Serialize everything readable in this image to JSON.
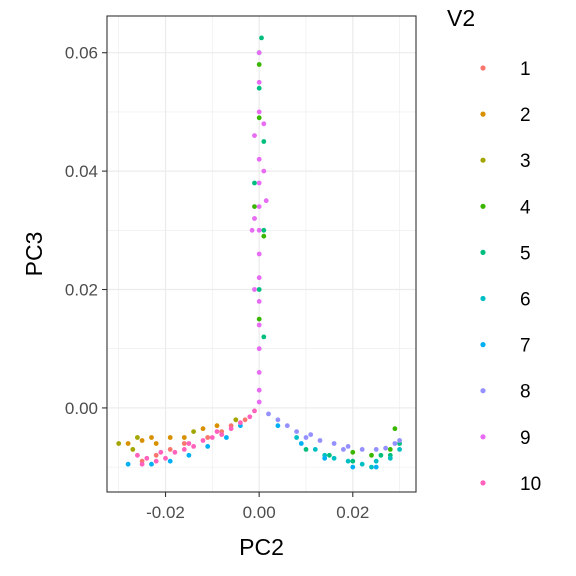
{
  "chart_data": {
    "type": "scatter",
    "xlabel": "PC2",
    "ylabel": "PC3",
    "xlim": [
      -0.0325,
      0.0335
    ],
    "ylim": [
      -0.0142,
      0.0662
    ],
    "x_ticks": [
      -0.02,
      0.0,
      0.02
    ],
    "x_tick_labels": [
      "-0.02",
      "0.00",
      "0.02"
    ],
    "y_ticks": [
      0.0,
      0.02,
      0.04,
      0.06
    ],
    "y_tick_labels": [
      "0.00",
      "0.02",
      "0.04",
      "0.06"
    ],
    "grid": true,
    "legend": {
      "title": "V2",
      "placement": "right",
      "entries": [
        "1",
        "2",
        "3",
        "4",
        "5",
        "6",
        "7",
        "8",
        "9",
        "10"
      ]
    },
    "colors": [
      "#F8766D",
      "#D89000",
      "#A3A500",
      "#39B600",
      "#00BF7D",
      "#00BFC4",
      "#00B0F6",
      "#9590FF",
      "#E76BF3",
      "#FF62BC"
    ],
    "series": [
      {
        "name": "1",
        "points": [
          [
            -0.022,
            -0.008
          ],
          [
            -0.016,
            -0.006
          ],
          [
            -0.011,
            -0.005
          ],
          [
            -0.006,
            -0.003
          ],
          [
            -0.003,
            -0.002
          ],
          [
            -0.019,
            -0.007
          ],
          [
            -0.008,
            -0.004
          ],
          [
            -0.025,
            -0.009
          ]
        ]
      },
      {
        "name": "2",
        "points": [
          [
            -0.028,
            -0.006
          ],
          [
            -0.025,
            -0.0055
          ],
          [
            -0.022,
            -0.006
          ],
          [
            -0.019,
            -0.005
          ],
          [
            -0.016,
            -0.005
          ],
          [
            -0.012,
            -0.0035
          ],
          [
            -0.009,
            -0.003
          ],
          [
            -0.023,
            -0.005
          ]
        ]
      },
      {
        "name": "3",
        "points": [
          [
            -0.03,
            -0.006
          ],
          [
            -0.027,
            -0.007
          ],
          [
            -0.014,
            -0.004
          ],
          [
            -0.005,
            -0.002
          ],
          [
            -0.026,
            -0.005
          ]
        ]
      },
      {
        "name": "4",
        "points": [
          [
            0.0,
            0.058
          ],
          [
            0.0,
            0.049
          ],
          [
            -0.001,
            0.034
          ],
          [
            0.001,
            0.029
          ],
          [
            0.029,
            -0.0035
          ],
          [
            0.028,
            -0.007
          ],
          [
            0.024,
            -0.008
          ],
          [
            0.02,
            -0.0075
          ],
          [
            0.0,
            0.015
          ]
        ]
      },
      {
        "name": "5",
        "points": [
          [
            0.0005,
            0.0625
          ],
          [
            0.0,
            0.06
          ],
          [
            0.0,
            0.054
          ],
          [
            0.001,
            0.045
          ],
          [
            -0.001,
            0.038
          ],
          [
            0.001,
            0.03
          ],
          [
            0.0,
            0.02
          ],
          [
            0.001,
            0.012
          ],
          [
            0.015,
            -0.008
          ],
          [
            0.02,
            -0.009
          ],
          [
            0.026,
            -0.008
          ],
          [
            0.03,
            -0.006
          ],
          [
            0.01,
            -0.007
          ],
          [
            0.028,
            -0.008
          ]
        ]
      },
      {
        "name": "6",
        "points": [
          [
            0.008,
            -0.005
          ],
          [
            0.012,
            -0.007
          ],
          [
            0.016,
            -0.0085
          ],
          [
            0.019,
            -0.009
          ],
          [
            0.022,
            -0.0095
          ],
          [
            0.025,
            -0.009
          ],
          [
            0.028,
            -0.0085
          ],
          [
            0.03,
            -0.007
          ],
          [
            0.014,
            -0.008
          ],
          [
            0.024,
            -0.01
          ]
        ]
      },
      {
        "name": "7",
        "points": [
          [
            -0.028,
            -0.0095
          ],
          [
            -0.023,
            -0.0095
          ],
          [
            -0.019,
            -0.009
          ],
          [
            -0.015,
            -0.008
          ],
          [
            -0.011,
            -0.0065
          ],
          [
            -0.007,
            -0.005
          ],
          [
            -0.004,
            -0.003
          ],
          [
            0.004,
            -0.003
          ],
          [
            0.009,
            -0.006
          ],
          [
            0.014,
            -0.0085
          ],
          [
            0.02,
            -0.01
          ],
          [
            0.025,
            -0.01
          ]
        ]
      },
      {
        "name": "8",
        "points": [
          [
            0.002,
            -0.001
          ],
          [
            0.004,
            -0.002
          ],
          [
            0.006,
            -0.003
          ],
          [
            0.008,
            -0.004
          ],
          [
            0.01,
            -0.005
          ],
          [
            0.013,
            -0.0055
          ],
          [
            0.016,
            -0.006
          ],
          [
            0.019,
            -0.0065
          ],
          [
            0.022,
            -0.007
          ],
          [
            0.025,
            -0.007
          ],
          [
            0.027,
            -0.0068
          ],
          [
            0.029,
            -0.006
          ],
          [
            0.03,
            -0.0055
          ],
          [
            0.011,
            -0.0045
          ],
          [
            0.018,
            -0.007
          ]
        ]
      },
      {
        "name": "9",
        "points": [
          [
            0.0,
            0.06
          ],
          [
            0.0,
            0.055
          ],
          [
            0.0,
            0.05
          ],
          [
            -0.001,
            0.046
          ],
          [
            0.0,
            0.042
          ],
          [
            0.0,
            0.038
          ],
          [
            0.0,
            0.034
          ],
          [
            0.0,
            0.03
          ],
          [
            0.0,
            0.026
          ],
          [
            0.0,
            0.022
          ],
          [
            0.0,
            0.018
          ],
          [
            0.0,
            0.014
          ],
          [
            0.0,
            0.01
          ],
          [
            0.0,
            0.006
          ],
          [
            0.0,
            0.003
          ],
          [
            0.0,
            0.001
          ],
          [
            0.001,
            0.048
          ],
          [
            -0.001,
            0.032
          ],
          [
            0.001,
            0.04
          ],
          [
            -0.001,
            0.02
          ],
          [
            -0.0015,
            0.03
          ],
          [
            0.0015,
            0.035
          ]
        ]
      },
      {
        "name": "10",
        "points": [
          [
            -0.026,
            -0.008
          ],
          [
            -0.024,
            -0.0085
          ],
          [
            -0.022,
            -0.009
          ],
          [
            -0.02,
            -0.0085
          ],
          [
            -0.018,
            -0.0075
          ],
          [
            -0.016,
            -0.007
          ],
          [
            -0.014,
            -0.0065
          ],
          [
            -0.012,
            -0.0055
          ],
          [
            -0.01,
            -0.005
          ],
          [
            -0.008,
            -0.0045
          ],
          [
            -0.006,
            -0.0035
          ],
          [
            -0.004,
            -0.0025
          ],
          [
            -0.002,
            -0.0015
          ],
          [
            -0.001,
            -0.0005
          ],
          [
            -0.021,
            -0.0075
          ],
          [
            -0.015,
            -0.006
          ],
          [
            -0.009,
            -0.004
          ],
          [
            -0.025,
            -0.0095
          ]
        ]
      }
    ]
  }
}
